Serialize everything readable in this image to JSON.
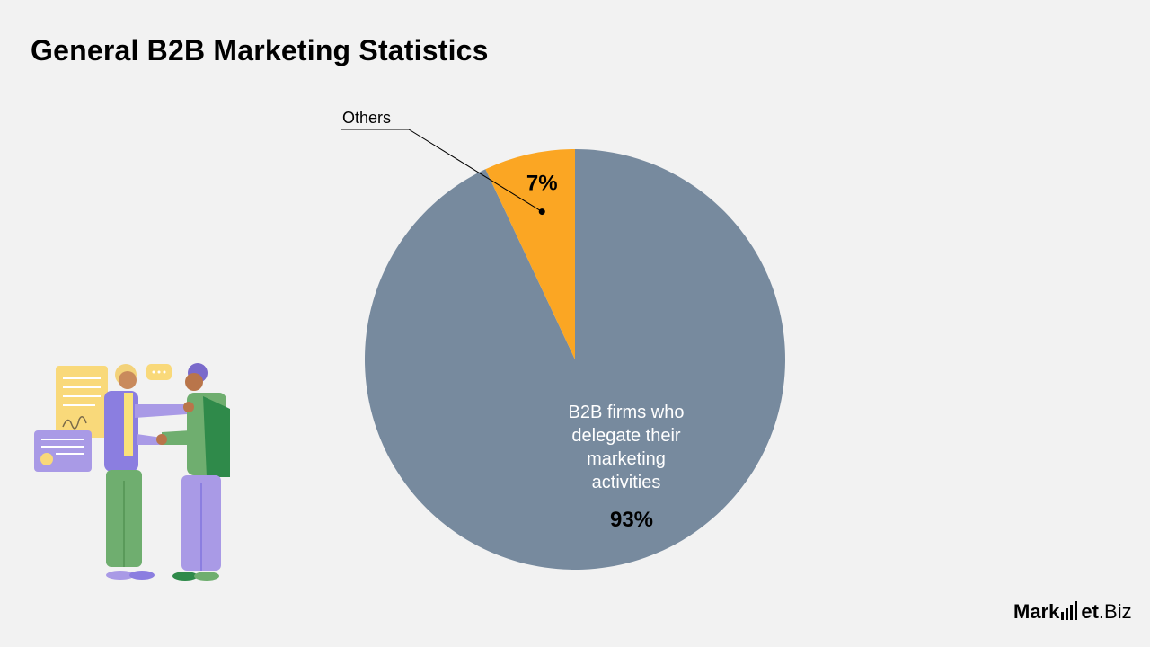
{
  "title": "General B2B Marketing Statistics",
  "chart_data": {
    "type": "pie",
    "title": "General B2B Marketing Statistics",
    "slices": [
      {
        "label": "B2B firms who delegate their marketing activities",
        "label_lines": [
          "B2B firms who",
          "delegate their",
          "marketing",
          "activities"
        ],
        "value": 93,
        "value_label": "93%",
        "color": "#778a9e"
      },
      {
        "label": "Others",
        "label_lines": [
          "Others"
        ],
        "value": 7,
        "value_label": "7%",
        "color": "#fba623"
      }
    ],
    "legend": "none"
  },
  "logo": {
    "part1": "Mark",
    "part2": "et",
    "part3": ".Biz",
    "icon": "bar-chart-icon"
  },
  "illustration": {
    "icon": "business-handshake-illustration"
  }
}
